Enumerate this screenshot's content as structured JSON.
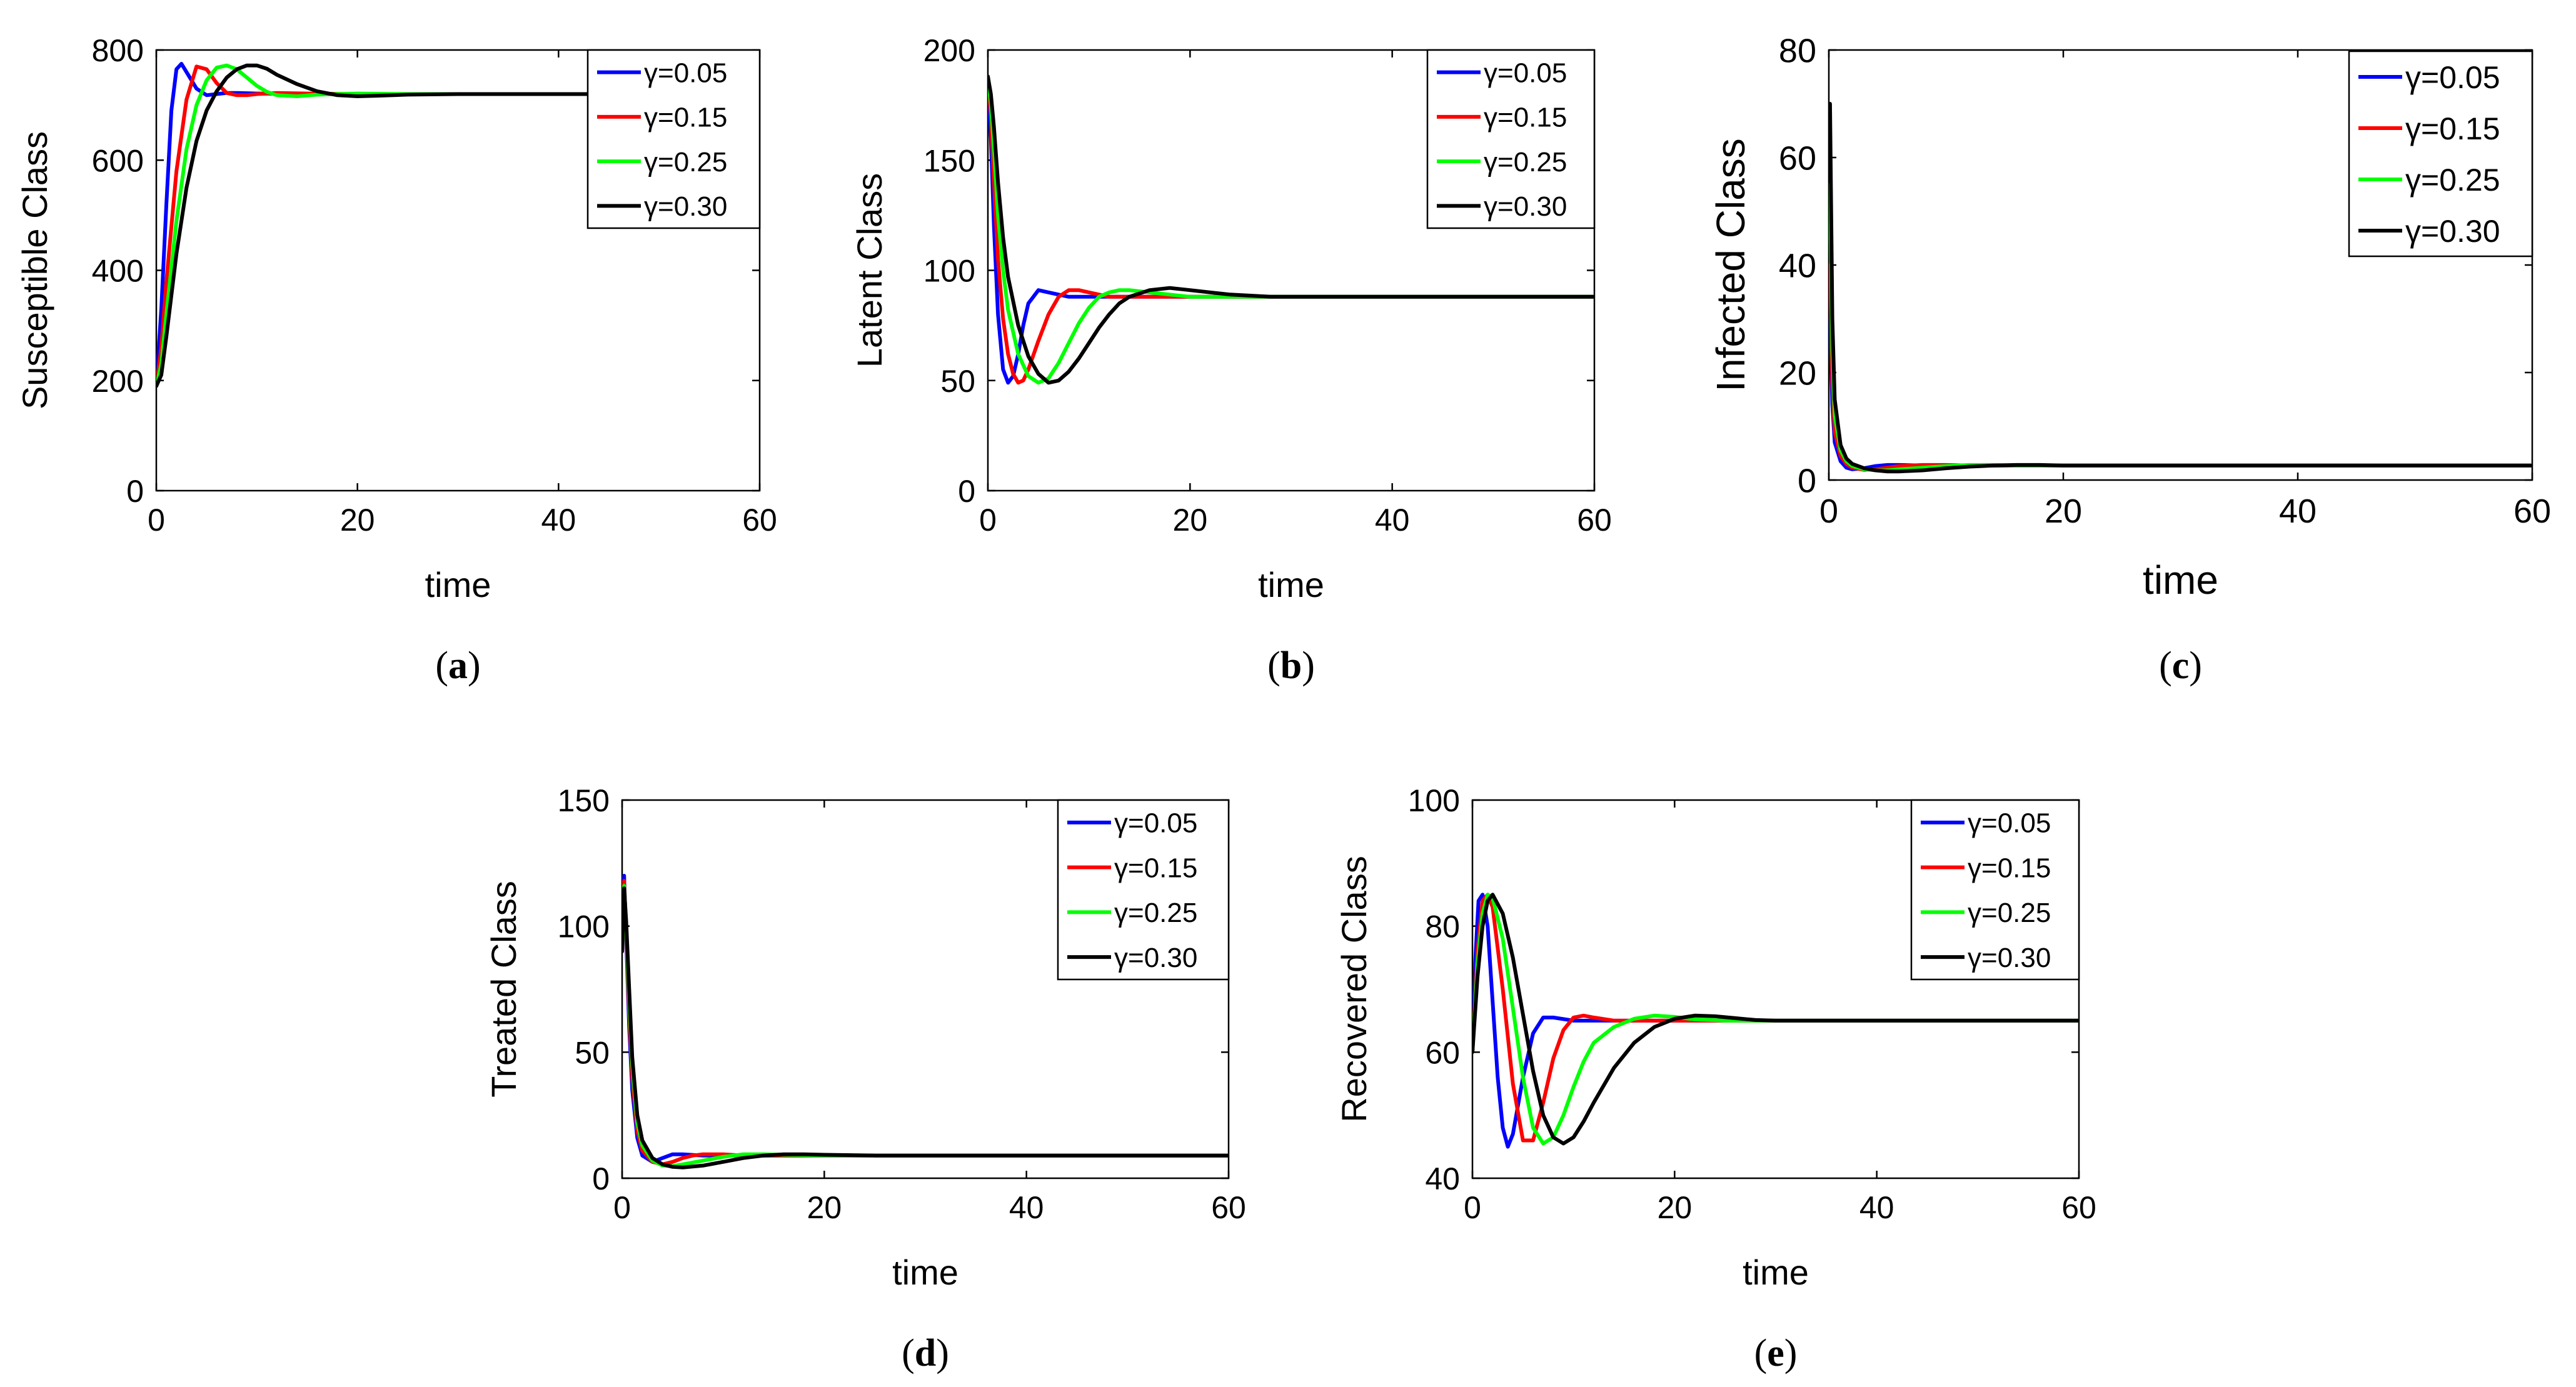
{
  "chart_data": [
    {
      "type": "line",
      "caption": "a",
      "xlabel": "time",
      "ylabel": "Susceptible Class",
      "xlim": [
        0,
        60
      ],
      "ylim": [
        0,
        800
      ],
      "xticks": [
        "0",
        "20",
        "40",
        "60"
      ],
      "yticks": [
        "0",
        "200",
        "400",
        "600",
        "800"
      ],
      "legend_position": "top-right",
      "series": [
        {
          "name": "γ=0.05",
          "color": "#0000ff",
          "x": [
            0,
            0.5,
            1,
            1.5,
            2,
            2.5,
            3,
            4,
            5,
            6,
            7,
            8,
            10,
            15,
            20,
            25,
            30,
            40,
            50,
            60
          ],
          "y": [
            190,
            330,
            520,
            690,
            765,
            775,
            760,
            730,
            718,
            720,
            722,
            722,
            721,
            720,
            720,
            720,
            720,
            720,
            720,
            720
          ]
        },
        {
          "name": "γ=0.15",
          "color": "#ff0000",
          "x": [
            0,
            0.5,
            1,
            2,
            3,
            4,
            5,
            6,
            7,
            8,
            9,
            10,
            12,
            15,
            20,
            25,
            30,
            40,
            50,
            60
          ],
          "y": [
            190,
            260,
            380,
            580,
            710,
            770,
            765,
            740,
            722,
            718,
            718,
            720,
            722,
            721,
            720,
            720,
            720,
            720,
            720,
            720
          ]
        },
        {
          "name": "γ=0.25",
          "color": "#00ff00",
          "x": [
            0,
            0.5,
            1,
            2,
            3,
            4,
            5,
            6,
            7,
            8,
            9,
            10,
            11,
            12,
            14,
            16,
            20,
            25,
            30,
            40,
            50,
            60
          ],
          "y": [
            190,
            230,
            320,
            490,
            620,
            700,
            745,
            768,
            772,
            765,
            750,
            735,
            724,
            718,
            716,
            719,
            721,
            720,
            720,
            720,
            720,
            720
          ]
        },
        {
          "name": "γ=0.30",
          "color": "#000000",
          "x": [
            0,
            0.5,
            1,
            2,
            3,
            4,
            5,
            6,
            7,
            8,
            9,
            10,
            11,
            12,
            14,
            16,
            18,
            20,
            22,
            25,
            30,
            40,
            50,
            60
          ],
          "y": [
            190,
            210,
            280,
            430,
            550,
            635,
            690,
            725,
            750,
            765,
            772,
            772,
            766,
            755,
            738,
            725,
            718,
            716,
            717,
            719,
            720,
            720,
            720,
            720
          ]
        }
      ]
    },
    {
      "type": "line",
      "caption": "b",
      "xlabel": "time",
      "ylabel": "Latent Class",
      "xlim": [
        0,
        60
      ],
      "ylim": [
        0,
        200
      ],
      "xticks": [
        "0",
        "20",
        "40",
        "60"
      ],
      "yticks": [
        "0",
        "50",
        "100",
        "150",
        "200"
      ],
      "legend_position": "top-right",
      "series": [
        {
          "name": "γ=0.05",
          "color": "#0000ff",
          "x": [
            0,
            0.3,
            0.6,
            1,
            1.5,
            2,
            2.5,
            3,
            3.5,
            4,
            5,
            6,
            8,
            10,
            15,
            20,
            30,
            40,
            50,
            60
          ],
          "y": [
            185,
            160,
            120,
            80,
            55,
            49,
            52,
            62,
            75,
            85,
            91,
            90,
            88,
            88,
            88,
            88,
            88,
            88,
            88,
            88
          ]
        },
        {
          "name": "γ=0.15",
          "color": "#ff0000",
          "x": [
            0,
            0.3,
            0.6,
            1,
            1.5,
            2,
            2.5,
            3,
            3.5,
            4,
            5,
            6,
            7,
            8,
            9,
            10,
            12,
            15,
            20,
            30,
            40,
            50,
            60
          ],
          "y": [
            188,
            170,
            140,
            105,
            78,
            62,
            53,
            49,
            50,
            55,
            68,
            80,
            88,
            91,
            91,
            90,
            88,
            88,
            88,
            88,
            88,
            88,
            88
          ]
        },
        {
          "name": "γ=0.25",
          "color": "#00ff00",
          "x": [
            0,
            0.3,
            0.6,
            1,
            1.5,
            2,
            3,
            4,
            5,
            6,
            7,
            8,
            9,
            10,
            11,
            12,
            13,
            14,
            16,
            18,
            20,
            25,
            30,
            40,
            50,
            60
          ],
          "y": [
            188,
            175,
            155,
            125,
            100,
            82,
            62,
            52,
            49,
            51,
            58,
            67,
            76,
            83,
            88,
            90,
            91,
            91,
            90,
            89,
            88,
            88,
            88,
            88,
            88,
            88
          ]
        },
        {
          "name": "γ=0.30",
          "color": "#000000",
          "x": [
            0,
            0.3,
            0.6,
            1,
            1.5,
            2,
            3,
            4,
            5,
            6,
            7,
            8,
            9,
            10,
            11,
            12,
            13,
            14,
            16,
            18,
            20,
            22,
            24,
            26,
            28,
            30,
            40,
            50,
            60
          ],
          "y": [
            188,
            180,
            165,
            140,
            115,
            97,
            75,
            61,
            53,
            49,
            50,
            54,
            60,
            67,
            74,
            80,
            85,
            88,
            91,
            92,
            91,
            90,
            89,
            88.5,
            88,
            88,
            88,
            88,
            88
          ]
        }
      ]
    },
    {
      "type": "line",
      "caption": "c",
      "xlabel": "time",
      "ylabel": "Infected Class",
      "xlim": [
        0,
        60
      ],
      "ylim": [
        0,
        80
      ],
      "xticks": [
        "0",
        "20",
        "40",
        "60"
      ],
      "yticks": [
        "0",
        "20",
        "40",
        "60",
        "80"
      ],
      "legend_position": "top-right",
      "series": [
        {
          "name": "γ=0.05",
          "color": "#0000ff",
          "x": [
            0,
            0.1,
            0.3,
            0.5,
            1,
            1.5,
            2,
            3,
            4,
            5,
            6,
            8,
            10,
            15,
            20,
            30,
            40,
            50,
            60
          ],
          "y": [
            25,
            30,
            14,
            7,
            3.5,
            2.3,
            2.0,
            2.2,
            2.6,
            2.8,
            2.8,
            2.7,
            2.7,
            2.7,
            2.7,
            2.7,
            2.7,
            2.7,
            2.7
          ]
        },
        {
          "name": "γ=0.15",
          "color": "#ff0000",
          "x": [
            0,
            0.1,
            0.3,
            0.5,
            1,
            1.5,
            2,
            3,
            4,
            5,
            6,
            8,
            10,
            12,
            15,
            20,
            30,
            40,
            50,
            60
          ],
          "y": [
            35,
            40,
            18,
            9,
            4.5,
            3.0,
            2.3,
            1.9,
            2.0,
            2.3,
            2.6,
            2.8,
            2.8,
            2.7,
            2.7,
            2.7,
            2.7,
            2.7,
            2.7,
            2.7
          ]
        },
        {
          "name": "γ=0.25",
          "color": "#00ff00",
          "x": [
            0,
            0.1,
            0.3,
            0.5,
            1,
            1.5,
            2,
            3,
            4,
            5,
            6,
            8,
            10,
            12,
            14,
            16,
            20,
            30,
            40,
            50,
            60
          ],
          "y": [
            45,
            55,
            24,
            12,
            5.5,
            3.5,
            2.6,
            2.0,
            1.8,
            1.8,
            2.0,
            2.3,
            2.6,
            2.8,
            2.8,
            2.7,
            2.7,
            2.7,
            2.7,
            2.7,
            2.7
          ]
        },
        {
          "name": "γ=0.30",
          "color": "#000000",
          "x": [
            0,
            0.1,
            0.3,
            0.5,
            1,
            1.5,
            2,
            3,
            4,
            5,
            6,
            8,
            10,
            12,
            14,
            16,
            18,
            20,
            30,
            40,
            50,
            60
          ],
          "y": [
            60,
            70,
            30,
            15,
            6.5,
            4.0,
            3.0,
            2.2,
            1.8,
            1.6,
            1.6,
            1.8,
            2.2,
            2.5,
            2.7,
            2.8,
            2.8,
            2.7,
            2.7,
            2.7,
            2.7,
            2.7
          ]
        }
      ]
    },
    {
      "type": "line",
      "caption": "d",
      "xlabel": "time",
      "ylabel": "Treated Class",
      "xlim": [
        0,
        60
      ],
      "ylim": [
        0,
        150
      ],
      "xticks": [
        "0",
        "20",
        "40",
        "60"
      ],
      "yticks": [
        "0",
        "50",
        "100",
        "150"
      ],
      "legend_position": "top-right",
      "series": [
        {
          "name": "γ=0.05",
          "color": "#0000ff",
          "x": [
            0,
            0.2,
            0.4,
            0.7,
            1,
            1.5,
            2,
            3,
            4,
            5,
            6,
            8,
            10,
            15,
            20,
            30,
            40,
            50,
            60
          ],
          "y": [
            90,
            120,
            95,
            60,
            35,
            16,
            9,
            6.5,
            8,
            9.5,
            9.5,
            9,
            9,
            9,
            9,
            9,
            9,
            9,
            9
          ]
        },
        {
          "name": "γ=0.15",
          "color": "#ff0000",
          "x": [
            0,
            0.2,
            0.4,
            0.7,
            1,
            1.5,
            2,
            3,
            4,
            5,
            6,
            7,
            8,
            10,
            12,
            15,
            20,
            30,
            40,
            50,
            60
          ],
          "y": [
            90,
            118,
            98,
            65,
            40,
            19,
            11,
            6.5,
            5.5,
            6.5,
            8,
            9,
            9.5,
            9.5,
            9,
            9,
            9,
            9,
            9,
            9,
            9
          ]
        },
        {
          "name": "γ=0.25",
          "color": "#00ff00",
          "x": [
            0,
            0.2,
            0.4,
            0.7,
            1,
            1.5,
            2,
            3,
            4,
            5,
            6,
            8,
            10,
            12,
            14,
            16,
            20,
            30,
            40,
            50,
            60
          ],
          "y": [
            90,
            116,
            100,
            70,
            45,
            22,
            13,
            7,
            5,
            4.8,
            5.5,
            7,
            8.5,
            9.5,
            9.5,
            9.3,
            9,
            9,
            9,
            9,
            9
          ]
        },
        {
          "name": "γ=0.30",
          "color": "#000000",
          "x": [
            0,
            0.2,
            0.4,
            0.7,
            1,
            1.5,
            2,
            3,
            4,
            5,
            6,
            8,
            10,
            12,
            14,
            16,
            18,
            20,
            25,
            30,
            40,
            50,
            60
          ],
          "y": [
            90,
            115,
            102,
            75,
            48,
            25,
            15,
            8,
            5.5,
            4.5,
            4.3,
            5,
            6.5,
            8,
            9,
            9.5,
            9.5,
            9.3,
            9,
            9,
            9,
            9,
            9
          ]
        }
      ]
    },
    {
      "type": "line",
      "caption": "e",
      "xlabel": "time",
      "ylabel": "Recovered Class",
      "xlim": [
        0,
        60
      ],
      "ylim": [
        40,
        100
      ],
      "xticks": [
        "0",
        "20",
        "40",
        "60"
      ],
      "yticks": [
        "40",
        "60",
        "80",
        "100"
      ],
      "legend_position": "top-right",
      "series": [
        {
          "name": "γ=0.05",
          "color": "#0000ff",
          "x": [
            0,
            0.3,
            0.6,
            1,
            1.5,
            2,
            2.5,
            3,
            3.5,
            4,
            5,
            6,
            7,
            8,
            10,
            15,
            20,
            30,
            40,
            50,
            60
          ],
          "y": [
            60,
            75,
            84,
            85,
            80,
            68,
            56,
            48,
            45,
            47,
            56,
            63,
            65.5,
            65.5,
            65,
            65,
            65,
            65,
            65,
            65,
            65
          ]
        },
        {
          "name": "γ=0.15",
          "color": "#ff0000",
          "x": [
            0,
            0.5,
            1,
            1.5,
            2,
            3,
            4,
            5,
            6,
            7,
            8,
            9,
            10,
            11,
            12,
            14,
            16,
            20,
            30,
            40,
            50,
            60
          ],
          "y": [
            60,
            76,
            84,
            85,
            83,
            70,
            55,
            46,
            46,
            52,
            59,
            63.5,
            65.5,
            65.8,
            65.5,
            65,
            65,
            65,
            65,
            65,
            65,
            65
          ]
        },
        {
          "name": "γ=0.25",
          "color": "#00ff00",
          "x": [
            0,
            0.5,
            1,
            1.5,
            2,
            3,
            4,
            5,
            6,
            7,
            8,
            9,
            10,
            11,
            12,
            14,
            16,
            18,
            20,
            22,
            25,
            30,
            40,
            50,
            60
          ],
          "y": [
            60,
            74,
            82,
            85,
            84.5,
            78,
            67,
            56,
            48,
            45.5,
            46.5,
            50,
            54.5,
            58.5,
            61.5,
            64,
            65.3,
            65.8,
            65.6,
            65.2,
            65,
            65,
            65,
            65,
            65
          ]
        },
        {
          "name": "γ=0.30",
          "color": "#000000",
          "x": [
            0,
            0.5,
            1,
            1.5,
            2,
            3,
            4,
            5,
            6,
            7,
            8,
            9,
            10,
            11,
            12,
            14,
            16,
            18,
            20,
            22,
            24,
            26,
            28,
            30,
            40,
            50,
            60
          ],
          "y": [
            60,
            72,
            80,
            84,
            85,
            82,
            75,
            66,
            57,
            50,
            46.5,
            45.5,
            46.5,
            49,
            52,
            57.5,
            61.5,
            64,
            65.3,
            65.8,
            65.7,
            65.4,
            65.1,
            65,
            65,
            65,
            65
          ]
        }
      ]
    }
  ]
}
